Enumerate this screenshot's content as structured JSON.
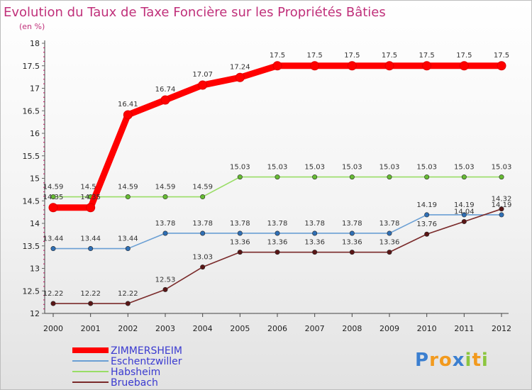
{
  "chart_data": {
    "type": "line",
    "title": "Evolution du Taux de Taxe Foncière sur les Propriétés Bâties",
    "subtitle": "(en %)",
    "xlabel": "",
    "ylabel": "(en %)",
    "x": [
      "2000",
      "2001",
      "2002",
      "2003",
      "2004",
      "2005",
      "2006",
      "2007",
      "2008",
      "2009",
      "2010",
      "2011",
      "2012"
    ],
    "ylim": [
      12,
      18
    ],
    "yticks": [
      "12",
      "12.5",
      "13",
      "13.5",
      "14",
      "14.5",
      "15",
      "15.5",
      "16",
      "16.5",
      "17",
      "17.5",
      "18"
    ],
    "grid": false,
    "legend_position": "bottom-left",
    "series": [
      {
        "name": "ZIMMERSHEIM",
        "color": "#ff0000",
        "point_color": "#dd0000",
        "emphasis": true,
        "values": [
          14.35,
          14.35,
          16.41,
          16.74,
          17.07,
          17.24,
          17.5,
          17.5,
          17.5,
          17.5,
          17.5,
          17.5,
          17.5
        ],
        "labels": [
          "14.35",
          "14.35",
          "16.41",
          "16.74",
          "17.07",
          "17.24",
          "17.5",
          "17.5",
          "17.5",
          "17.5",
          "17.5",
          "17.5",
          "17.5"
        ]
      },
      {
        "name": "Eschentzwiller",
        "color": "#6a9fd4",
        "point_color": "#2f6fb5",
        "emphasis": false,
        "values": [
          13.44,
          13.44,
          13.44,
          13.78,
          13.78,
          13.78,
          13.78,
          13.78,
          13.78,
          13.78,
          14.19,
          14.19,
          14.19
        ],
        "labels": [
          "13.44",
          "13.44",
          "13.44",
          "13.78",
          "13.78",
          "13.78",
          "13.78",
          "13.78",
          "13.78",
          "13.78",
          "14.19",
          "14.19",
          "14.19"
        ]
      },
      {
        "name": "Habsheim",
        "color": "#99dd66",
        "point_color": "#66bb33",
        "emphasis": false,
        "values": [
          14.59,
          14.59,
          14.59,
          14.59,
          14.59,
          15.03,
          15.03,
          15.03,
          15.03,
          15.03,
          15.03,
          15.03,
          15.03
        ],
        "labels": [
          "14.59",
          "14.59",
          "14.59",
          "14.59",
          "14.59",
          "15.03",
          "15.03",
          "15.03",
          "15.03",
          "15.03",
          "15.03",
          "15.03",
          "15.03"
        ]
      },
      {
        "name": "Bruebach",
        "color": "#7a2a2a",
        "point_color": "#5a1515",
        "emphasis": false,
        "values": [
          12.22,
          12.22,
          12.22,
          12.53,
          13.03,
          13.36,
          13.36,
          13.36,
          13.36,
          13.36,
          13.76,
          14.04,
          14.32
        ],
        "labels": [
          "12.22",
          "12.22",
          "12.22",
          "12.53",
          "13.03",
          "13.36",
          "13.36",
          "13.36",
          "13.36",
          "13.36",
          "13.76",
          "14.04",
          "14.32"
        ]
      }
    ]
  },
  "logo": {
    "letters": [
      "P",
      "r",
      "o",
      "x",
      "i",
      "t",
      "i"
    ],
    "colors": [
      "#3b7fd0",
      "#f29a1e",
      "#f29a1e",
      "#3b7fd0",
      "#8cc63f",
      "#f29a1e",
      "#8cc63f"
    ]
  }
}
